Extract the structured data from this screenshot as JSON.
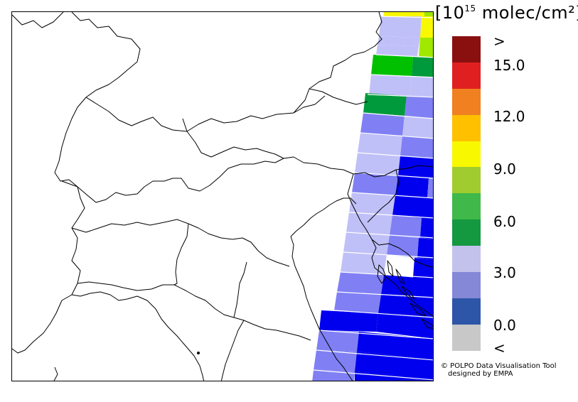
{
  "units": {
    "prefix": "[10",
    "exponent": "15",
    "suffix": " molec/cm²]"
  },
  "colorbar": {
    "classes": [
      "#c8c8c8",
      "#2e56a8",
      "#8588d6",
      "#c2c2ec",
      "#149840",
      "#40b84a",
      "#a0cc30",
      "#f8f800",
      "#ffc000",
      "#f08020",
      "#e02020",
      "#8a1010"
    ],
    "tick_labels": [
      ">",
      "15.0",
      "12.0",
      "9.0",
      "6.0",
      "3.0",
      "0.0",
      "<"
    ]
  },
  "credit": {
    "line1": "© POLPO Data Visualisation Tool",
    "line2": "designed by EMPA"
  },
  "map_legend_fill": {
    "blue": "#0000ee",
    "mid_blue": "#8080f4",
    "light_blue": "#c0c0f8",
    "green": "#00c000",
    "dark_green": "#009a3c",
    "yellow": "#f8f800",
    "lime": "#a0e800"
  }
}
